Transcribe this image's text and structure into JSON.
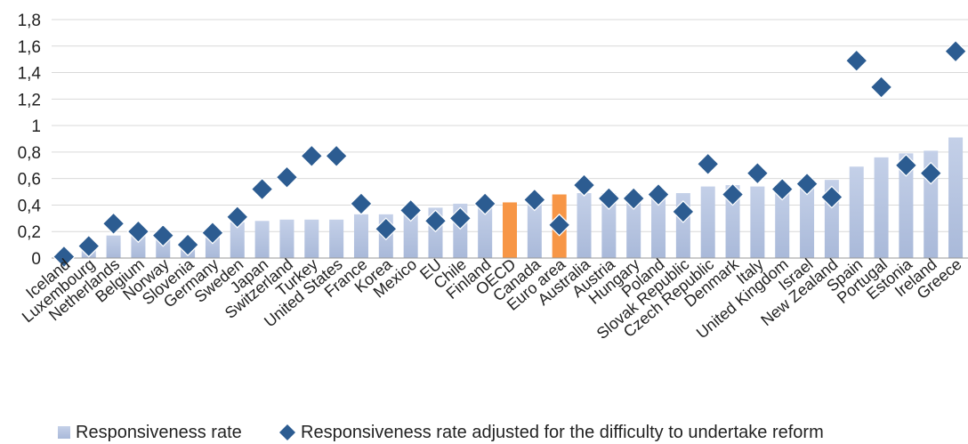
{
  "chart_data": {
    "type": "bar",
    "title": "",
    "xlabel": "",
    "ylabel": "",
    "ylim": [
      0,
      1.8
    ],
    "yticks": [
      "0",
      "0,2",
      "0,4",
      "0,6",
      "0,8",
      "1",
      "1,2",
      "1,4",
      "1,6",
      "1,8"
    ],
    "grid": true,
    "legend_position": "bottom",
    "categories": [
      "Iceland",
      "Luxembourg",
      "Netherlands",
      "Belgium",
      "Norway",
      "Slovenia",
      "Germany",
      "Sweden",
      "Japan",
      "Switzerland",
      "Turkey",
      "United States",
      "France",
      "Korea",
      "Mexico",
      "EU",
      "Chile",
      "Finland",
      "OECD",
      "Canada",
      "Euro area",
      "Australia",
      "Austria",
      "Hungary",
      "Poland",
      "Slovak Republic",
      "Czech Republic",
      "Denmark",
      "Italy",
      "United Kingdom",
      "Israel",
      "New Zealand",
      "Spain",
      "Portugal",
      "Estonia",
      "Ireland",
      "Greece"
    ],
    "highlighted": [
      "OECD",
      "Euro area"
    ],
    "colors": {
      "bar": "#a9b9d9",
      "bar_highlight": "#f79646",
      "marker": "#2c5c91",
      "grid": "#d9d9d9",
      "axis": "#9a9a9a"
    },
    "series": [
      {
        "name": "Responsiveness rate",
        "type": "bar",
        "values": [
          0.0,
          0.06,
          0.17,
          0.19,
          0.19,
          0.13,
          0.22,
          0.27,
          0.28,
          0.29,
          0.29,
          0.29,
          0.33,
          0.33,
          0.35,
          0.38,
          0.41,
          0.41,
          0.42,
          0.43,
          0.48,
          0.49,
          0.49,
          0.49,
          0.49,
          0.49,
          0.54,
          0.55,
          0.54,
          0.55,
          0.58,
          0.59,
          0.69,
          0.76,
          0.79,
          0.81,
          0.91
        ]
      },
      {
        "name": "Responsiveness rate adjusted for the difficulty to undertake reform",
        "type": "scatter",
        "marker": "diamond",
        "values": [
          0.01,
          0.09,
          0.26,
          0.2,
          0.17,
          0.1,
          0.19,
          0.31,
          0.52,
          0.61,
          0.77,
          0.77,
          0.41,
          0.22,
          0.36,
          0.28,
          0.3,
          0.41,
          null,
          0.44,
          0.25,
          0.55,
          0.45,
          0.45,
          0.48,
          0.35,
          0.71,
          0.48,
          0.64,
          0.52,
          0.56,
          0.46,
          1.49,
          1.29,
          0.7,
          0.64,
          1.56
        ]
      }
    ]
  }
}
